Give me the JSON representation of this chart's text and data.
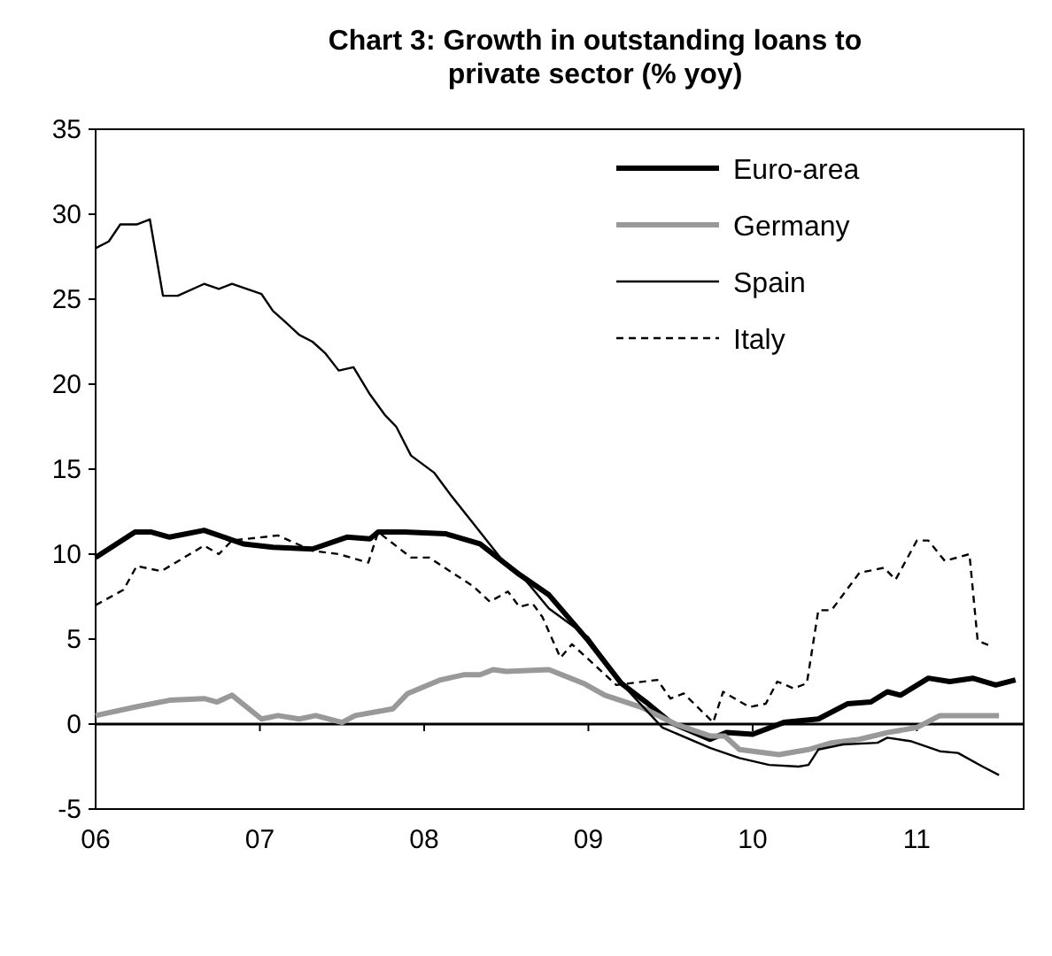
{
  "chart_data": {
    "type": "line",
    "title": "Chart 3: Growth in outstanding loans to private sector (% yoy)",
    "xlim": [
      2006,
      2011.65
    ],
    "xticks": [
      {
        "value": 2006,
        "label": "06"
      },
      {
        "value": 2007,
        "label": "07"
      },
      {
        "value": 2008,
        "label": "08"
      },
      {
        "value": 2009,
        "label": "09"
      },
      {
        "value": 2010,
        "label": "10"
      },
      {
        "value": 2011,
        "label": "11"
      }
    ],
    "ylim": [
      -5,
      35
    ],
    "yticks": [
      -5,
      0,
      5,
      10,
      15,
      20,
      25,
      30,
      35
    ],
    "ref_lines": [
      {
        "axis": "y",
        "value": 0,
        "color": "#000000"
      }
    ],
    "legend": "top right",
    "series": [
      {
        "name": "Euro-area",
        "color": "#000000",
        "line_style": "solid",
        "x": [
          2006,
          2006.24,
          2006.34,
          2006.45,
          2006.66,
          2006.9,
          2007.08,
          2007.32,
          2007.53,
          2007.67,
          2007.72,
          2007.88,
          2008.13,
          2008.34,
          2008.58,
          2008.76,
          2009.0,
          2009.2,
          2009.35,
          2009.5,
          2009.74,
          2009.84,
          2010.0,
          2010.19,
          2010.4,
          2010.58,
          2010.72,
          2010.82,
          2010.9,
          2011.07,
          2011.2,
          2011.34,
          2011.48,
          2011.6
        ],
        "values": [
          9.8,
          11.3,
          11.3,
          11.0,
          11.4,
          10.6,
          10.4,
          10.3,
          11.0,
          10.9,
          11.3,
          11.3,
          11.2,
          10.6,
          8.8,
          7.6,
          4.9,
          2.4,
          1.3,
          0.1,
          -0.9,
          -0.5,
          -0.6,
          0.1,
          0.3,
          1.2,
          1.3,
          1.9,
          1.7,
          2.7,
          2.5,
          2.7,
          2.3,
          2.6
        ]
      },
      {
        "name": "Germany",
        "color": "#999999",
        "line_style": "solid",
        "x": [
          2006,
          2006.24,
          2006.45,
          2006.66,
          2006.74,
          2006.83,
          2007.01,
          2007.11,
          2007.24,
          2007.34,
          2007.5,
          2007.58,
          2007.81,
          2007.9,
          2008.1,
          2008.24,
          2008.34,
          2008.42,
          2008.5,
          2008.76,
          2008.97,
          2009.1,
          2009.32,
          2009.53,
          2009.74,
          2009.83,
          2009.92,
          2010.16,
          2010.34,
          2010.48,
          2010.65,
          2010.82,
          2011.0,
          2011.14,
          2011.5
        ],
        "values": [
          0.5,
          1.0,
          1.4,
          1.5,
          1.3,
          1.7,
          0.3,
          0.5,
          0.3,
          0.5,
          0.1,
          0.5,
          0.9,
          1.8,
          2.6,
          2.9,
          2.9,
          3.2,
          3.1,
          3.2,
          2.4,
          1.7,
          1.0,
          0.0,
          -0.7,
          -0.7,
          -1.5,
          -1.8,
          -1.5,
          -1.1,
          -0.9,
          -0.5,
          -0.2,
          0.5,
          0.5
        ]
      },
      {
        "name": "Spain",
        "color": "#000000",
        "line_style": "solid",
        "x": [
          2006.0,
          2006.08,
          2006.15,
          2006.25,
          2006.33,
          2006.41,
          2006.5,
          2006.66,
          2006.75,
          2006.83,
          2007.01,
          2007.08,
          2007.15,
          2007.24,
          2007.32,
          2007.4,
          2007.48,
          2007.57,
          2007.67,
          2007.76,
          2007.83,
          2007.92,
          2008.06,
          2008.16,
          2008.3,
          2008.48,
          2008.58,
          2008.76,
          2009.0,
          2009.2,
          2009.45,
          2009.74,
          2009.92,
          2010.1,
          2010.28,
          2010.34,
          2010.4,
          2010.55,
          2010.76,
          2010.82,
          2010.96,
          2011.14,
          2011.25,
          2011.4,
          2011.5
        ],
        "values": [
          28.0,
          28.4,
          29.4,
          29.4,
          29.7,
          25.2,
          25.2,
          25.9,
          25.6,
          25.9,
          25.3,
          24.3,
          23.7,
          22.9,
          22.5,
          21.8,
          20.8,
          21.0,
          19.4,
          18.2,
          17.5,
          15.8,
          14.8,
          13.5,
          11.8,
          9.6,
          8.9,
          6.8,
          5.1,
          2.4,
          -0.2,
          -1.4,
          -2.0,
          -2.4,
          -2.5,
          -2.4,
          -1.5,
          -1.2,
          -1.1,
          -0.8,
          -1.0,
          -1.6,
          -1.7,
          -2.5,
          -3.0
        ]
      },
      {
        "name": "Italy",
        "color": "#000000",
        "line_style": "dashed",
        "x": [
          2006.0,
          2006.17,
          2006.25,
          2006.4,
          2006.66,
          2006.75,
          2006.83,
          2007.11,
          2007.32,
          2007.48,
          2007.66,
          2007.72,
          2007.92,
          2008.03,
          2008.3,
          2008.4,
          2008.51,
          2008.58,
          2008.66,
          2008.72,
          2008.83,
          2008.9,
          2009.17,
          2009.42,
          2009.5,
          2009.58,
          2009.76,
          2009.82,
          2009.98,
          2010.08,
          2010.15,
          2010.25,
          2010.33,
          2010.4,
          2010.48,
          2010.65,
          2010.8,
          2010.87,
          2011.0,
          2011.07,
          2011.17,
          2011.32,
          2011.37,
          2011.45
        ],
        "values": [
          7.0,
          7.9,
          9.3,
          9.0,
          10.5,
          10.0,
          10.8,
          11.1,
          10.2,
          10.0,
          9.5,
          11.3,
          9.8,
          9.8,
          8.1,
          7.2,
          7.8,
          6.9,
          7.1,
          6.3,
          3.9,
          4.7,
          2.3,
          2.6,
          1.5,
          1.8,
          0.1,
          1.9,
          1.0,
          1.2,
          2.5,
          2.1,
          2.4,
          6.7,
          6.7,
          8.9,
          9.2,
          8.5,
          10.8,
          10.8,
          9.6,
          10.0,
          4.9,
          4.6
        ]
      }
    ]
  }
}
